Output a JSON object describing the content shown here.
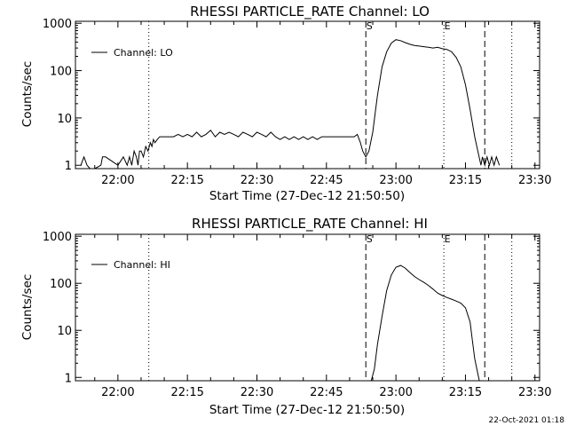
{
  "footer": {
    "timestamp": "22-Oct-2021 01:18"
  },
  "chart_data": [
    {
      "type": "line",
      "title": "RHESSI PARTICLE_RATE Channel: LO",
      "xlabel": "Start Time (27-Dec-12 21:50:50)",
      "ylabel": "Counts/sec",
      "y_scale": "log",
      "ylim": [
        0.85,
        1100
      ],
      "xlim": [
        "21:50:50",
        "23:31:00"
      ],
      "x_ticks": [
        "22:00",
        "22:15",
        "22:30",
        "22:45",
        "23:00",
        "23:15",
        "23:30"
      ],
      "y_ticks": [
        "1",
        "10",
        "100",
        "1000"
      ],
      "legend": {
        "position": "top-left",
        "entries": [
          "Channel: LO"
        ]
      },
      "markers": [
        {
          "label": "S",
          "time": "22:53:30",
          "style": "dashed"
        },
        {
          "label": "E",
          "time": "23:10:20",
          "style": "dotted"
        }
      ],
      "vlines": [
        {
          "time": "22:06:40",
          "style": "dotted"
        },
        {
          "time": "23:19:10",
          "style": "dashed"
        },
        {
          "time": "23:25:00",
          "style": "dotted"
        }
      ],
      "series": [
        {
          "name": "Channel: LO",
          "x": [
            "21:52:00",
            "21:52:40",
            "21:53:20",
            "21:54:00",
            "21:55:00",
            "21:56:20",
            "21:56:40",
            "21:57:20",
            "22:00:00",
            "22:01:10",
            "22:02:00",
            "22:02:30",
            "22:03:00",
            "22:03:30",
            "22:04:00",
            "22:04:20",
            "22:04:40",
            "22:05:00",
            "22:05:30",
            "22:06:00",
            "22:06:30",
            "22:07:00",
            "22:07:20",
            "22:07:40",
            "22:08:00",
            "22:08:30",
            "22:09:00",
            "22:10:00",
            "22:12:00",
            "22:13:00",
            "22:14:00",
            "22:15:00",
            "22:16:00",
            "22:17:00",
            "22:18:00",
            "22:19:00",
            "22:20:00",
            "22:21:00",
            "22:22:00",
            "22:23:00",
            "22:24:00",
            "22:25:00",
            "22:26:00",
            "22:27:00",
            "22:28:00",
            "22:29:00",
            "22:30:00",
            "22:31:00",
            "22:32:00",
            "22:33:00",
            "22:34:00",
            "22:35:00",
            "22:36:00",
            "22:37:00",
            "22:38:00",
            "22:39:00",
            "22:40:00",
            "22:41:00",
            "22:42:00",
            "22:43:00",
            "22:44:00",
            "22:45:00",
            "22:46:00",
            "22:47:00",
            "22:48:00",
            "22:49:00",
            "22:50:00",
            "22:51:00",
            "22:51:40",
            "22:52:20",
            "22:52:50",
            "22:53:30",
            "22:54:10",
            "22:55:00",
            "22:56:00",
            "22:57:00",
            "22:58:00",
            "22:59:00",
            "23:00:00",
            "23:01:00",
            "23:02:00",
            "23:03:00",
            "23:04:00",
            "23:05:00",
            "23:06:00",
            "23:07:00",
            "23:08:00",
            "23:09:00",
            "23:10:00",
            "23:11:00",
            "23:12:00",
            "23:13:00",
            "23:14:00",
            "23:15:00",
            "23:16:00",
            "23:17:00",
            "23:17:40",
            "23:18:20",
            "23:18:40",
            "23:19:10",
            "23:19:40",
            "23:20:10",
            "23:20:40",
            "23:21:10",
            "23:21:40",
            "23:22:20"
          ],
          "y": [
            1.0,
            1.5,
            1.0,
            0.8,
            0.8,
            1.0,
            1.5,
            1.5,
            1.0,
            1.5,
            1.0,
            1.5,
            1.0,
            2.0,
            1.5,
            1.0,
            2.0,
            2.0,
            1.5,
            2.5,
            2.0,
            3.0,
            2.5,
            3.5,
            3.0,
            3.5,
            4.0,
            4.0,
            4.0,
            4.5,
            4.0,
            4.5,
            4.0,
            5.0,
            4.0,
            4.5,
            5.5,
            4.0,
            5.0,
            4.5,
            5.0,
            4.5,
            4.0,
            5.0,
            4.5,
            4.0,
            5.0,
            4.5,
            4.0,
            5.0,
            4.0,
            3.5,
            4.0,
            3.5,
            4.0,
            3.5,
            4.0,
            3.5,
            4.0,
            3.5,
            4.0,
            4.0,
            4.0,
            4.0,
            4.0,
            4.0,
            4.0,
            4.0,
            4.5,
            3.0,
            2.0,
            1.5,
            2.0,
            5.0,
            30,
            120,
            250,
            380,
            450,
            430,
            390,
            360,
            340,
            330,
            320,
            310,
            300,
            310,
            290,
            280,
            250,
            190,
            120,
            50,
            15,
            4.0,
            2.0,
            1.0,
            1.5,
            1.0,
            1.5,
            1.0,
            1.5,
            1.0,
            1.5,
            1.0
          ]
        }
      ]
    },
    {
      "type": "line",
      "title": "RHESSI PARTICLE_RATE Channel: HI",
      "xlabel": "Start Time (27-Dec-12 21:50:50)",
      "ylabel": "Counts/sec",
      "y_scale": "log",
      "ylim": [
        0.85,
        1100
      ],
      "xlim": [
        "21:50:50",
        "23:31:00"
      ],
      "x_ticks": [
        "22:00",
        "22:15",
        "22:30",
        "22:45",
        "23:00",
        "23:15",
        "23:30"
      ],
      "y_ticks": [
        "1",
        "10",
        "100",
        "1000"
      ],
      "legend": {
        "position": "top-left",
        "entries": [
          "Channel: HI"
        ]
      },
      "markers": [
        {
          "label": "S",
          "time": "22:53:30",
          "style": "dashed"
        },
        {
          "label": "E",
          "time": "23:10:20",
          "style": "dotted"
        }
      ],
      "vlines": [
        {
          "time": "22:06:40",
          "style": "dotted"
        },
        {
          "time": "23:19:10",
          "style": "dashed"
        },
        {
          "time": "23:25:00",
          "style": "dotted"
        }
      ],
      "series": [
        {
          "name": "Channel: HI",
          "x": [
            "22:54:40",
            "22:55:20",
            "22:56:00",
            "22:57:00",
            "22:58:00",
            "22:59:00",
            "23:00:00",
            "23:01:00",
            "23:02:00",
            "23:03:00",
            "23:04:00",
            "23:05:00",
            "23:06:00",
            "23:07:00",
            "23:08:00",
            "23:09:00",
            "23:10:00",
            "23:11:00",
            "23:12:00",
            "23:13:00",
            "23:14:00",
            "23:15:00",
            "23:16:00",
            "23:16:30",
            "23:17:00",
            "23:17:40",
            "23:18:00"
          ],
          "y": [
            0.8,
            1.5,
            5,
            20,
            70,
            150,
            220,
            240,
            210,
            170,
            140,
            120,
            105,
            90,
            75,
            62,
            55,
            50,
            46,
            42,
            38,
            30,
            15,
            6,
            2.5,
            1.2,
            0.8
          ]
        }
      ]
    }
  ]
}
